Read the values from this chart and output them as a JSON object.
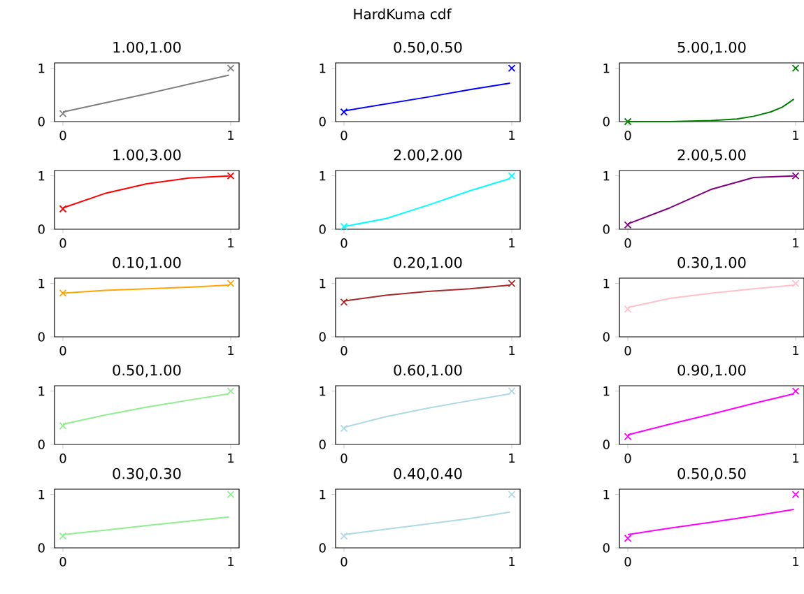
{
  "chart_data": [
    {
      "type": "line",
      "title": "1.00,1.00",
      "annotations": [
        "HardKuma cdf"
      ],
      "xlim": [
        -0.05,
        1.05
      ],
      "ylim": [
        0,
        1.1
      ],
      "xticks": [
        0,
        1
      ],
      "yticks": [
        0,
        1
      ],
      "series": [
        {
          "color": "#808080",
          "x": [
            0,
            0.25,
            0.5,
            0.75,
            0.99
          ],
          "values": [
            0.18,
            0.35,
            0.52,
            0.7,
            0.87
          ]
        },
        {
          "type": "scatter",
          "marker": "cross",
          "color": "#808080",
          "x": [
            0,
            1
          ],
          "values": [
            0.15,
            1
          ]
        }
      ]
    },
    {
      "type": "line",
      "title": "0.50,0.50",
      "xlim": [
        -0.05,
        1.05
      ],
      "ylim": [
        0,
        1.1
      ],
      "xticks": [
        0,
        1
      ],
      "yticks": [
        0,
        1
      ],
      "series": [
        {
          "color": "#0000ff",
          "x": [
            0,
            0.25,
            0.5,
            0.75,
            0.99
          ],
          "values": [
            0.2,
            0.33,
            0.46,
            0.6,
            0.72
          ]
        },
        {
          "type": "scatter",
          "marker": "cross",
          "color": "#0000ff",
          "x": [
            0,
            1
          ],
          "values": [
            0.18,
            1
          ]
        }
      ]
    },
    {
      "type": "line",
      "title": "5.00,1.00",
      "xlim": [
        -0.05,
        1.05
      ],
      "ylim": [
        0,
        1.1
      ],
      "xticks": [
        0,
        1
      ],
      "yticks": [
        0,
        1
      ],
      "series": [
        {
          "color": "#008000",
          "x": [
            0,
            0.25,
            0.5,
            0.65,
            0.75,
            0.85,
            0.92,
            0.99
          ],
          "values": [
            0,
            0,
            0.02,
            0.05,
            0.1,
            0.18,
            0.27,
            0.42
          ]
        },
        {
          "type": "scatter",
          "marker": "cross",
          "color": "#008000",
          "x": [
            0,
            1
          ],
          "values": [
            0,
            1
          ]
        }
      ]
    },
    {
      "type": "line",
      "title": "1.00,3.00",
      "xlim": [
        -0.05,
        1.05
      ],
      "ylim": [
        0,
        1.1
      ],
      "xticks": [
        0,
        1
      ],
      "yticks": [
        0,
        1
      ],
      "series": [
        {
          "color": "#ff0000",
          "x": [
            0,
            0.25,
            0.5,
            0.75,
            0.99
          ],
          "values": [
            0.4,
            0.67,
            0.85,
            0.96,
            1.0
          ]
        },
        {
          "type": "scatter",
          "marker": "cross",
          "color": "#ff0000",
          "x": [
            0,
            1
          ],
          "values": [
            0.38,
            1
          ]
        }
      ]
    },
    {
      "type": "line",
      "title": "2.00,2.00",
      "xlim": [
        -0.05,
        1.05
      ],
      "ylim": [
        0,
        1.1
      ],
      "xticks": [
        0,
        1
      ],
      "yticks": [
        0,
        1
      ],
      "series": [
        {
          "color": "#00ffff",
          "x": [
            0,
            0.25,
            0.5,
            0.75,
            0.99
          ],
          "values": [
            0.05,
            0.2,
            0.45,
            0.72,
            0.95
          ]
        },
        {
          "type": "scatter",
          "marker": "cross",
          "color": "#00ffff",
          "x": [
            0,
            1
          ],
          "values": [
            0.05,
            1
          ]
        }
      ]
    },
    {
      "type": "line",
      "title": "2.00,5.00",
      "xlim": [
        -0.05,
        1.05
      ],
      "ylim": [
        0,
        1.1
      ],
      "xticks": [
        0,
        1
      ],
      "yticks": [
        0,
        1
      ],
      "series": [
        {
          "color": "#800080",
          "x": [
            0,
            0.25,
            0.5,
            0.75,
            0.99
          ],
          "values": [
            0.1,
            0.4,
            0.75,
            0.97,
            1.0
          ]
        },
        {
          "type": "scatter",
          "marker": "cross",
          "color": "#800080",
          "x": [
            0,
            1
          ],
          "values": [
            0.08,
            1
          ]
        }
      ]
    },
    {
      "type": "line",
      "title": "0.10,1.00",
      "xlim": [
        -0.05,
        1.05
      ],
      "ylim": [
        0,
        1.1
      ],
      "xticks": [
        0,
        1
      ],
      "yticks": [
        0,
        1
      ],
      "series": [
        {
          "color": "#ffa500",
          "x": [
            0,
            0.25,
            0.5,
            0.75,
            0.99
          ],
          "values": [
            0.82,
            0.87,
            0.9,
            0.93,
            0.97
          ]
        },
        {
          "type": "scatter",
          "marker": "cross",
          "color": "#ffa500",
          "x": [
            0,
            1
          ],
          "values": [
            0.82,
            1
          ]
        }
      ]
    },
    {
      "type": "line",
      "title": "0.20,1.00",
      "xlim": [
        -0.05,
        1.05
      ],
      "ylim": [
        0,
        1.1
      ],
      "xticks": [
        0,
        1
      ],
      "yticks": [
        0,
        1
      ],
      "series": [
        {
          "color": "#a52a2a",
          "x": [
            0,
            0.25,
            0.5,
            0.75,
            0.99
          ],
          "values": [
            0.67,
            0.78,
            0.85,
            0.9,
            0.97
          ]
        },
        {
          "type": "scatter",
          "marker": "cross",
          "color": "#a52a2a",
          "x": [
            0,
            1
          ],
          "values": [
            0.65,
            1
          ]
        }
      ]
    },
    {
      "type": "line",
      "title": "0.30,1.00",
      "xlim": [
        -0.05,
        1.05
      ],
      "ylim": [
        0,
        1.1
      ],
      "xticks": [
        0,
        1
      ],
      "yticks": [
        0,
        1
      ],
      "series": [
        {
          "color": "#ffc0cb",
          "x": [
            0,
            0.25,
            0.5,
            0.75,
            0.99
          ],
          "values": [
            0.55,
            0.72,
            0.82,
            0.9,
            0.97
          ]
        },
        {
          "type": "scatter",
          "marker": "cross",
          "color": "#ffc0cb",
          "x": [
            0,
            1
          ],
          "values": [
            0.52,
            1
          ]
        }
      ]
    },
    {
      "type": "line",
      "title": "0.50,1.00",
      "xlim": [
        -0.05,
        1.05
      ],
      "ylim": [
        0,
        1.1
      ],
      "xticks": [
        0,
        1
      ],
      "yticks": [
        0,
        1
      ],
      "series": [
        {
          "color": "#90ee90",
          "x": [
            0,
            0.25,
            0.5,
            0.75,
            0.99
          ],
          "values": [
            0.38,
            0.55,
            0.7,
            0.83,
            0.95
          ]
        },
        {
          "type": "scatter",
          "marker": "cross",
          "color": "#90ee90",
          "x": [
            0,
            1
          ],
          "values": [
            0.35,
            1
          ]
        }
      ]
    },
    {
      "type": "line",
      "title": "0.60,1.00",
      "xlim": [
        -0.05,
        1.05
      ],
      "ylim": [
        0,
        1.1
      ],
      "xticks": [
        0,
        1
      ],
      "yticks": [
        0,
        1
      ],
      "series": [
        {
          "color": "#add8e6",
          "x": [
            0,
            0.25,
            0.5,
            0.75,
            0.99
          ],
          "values": [
            0.32,
            0.52,
            0.68,
            0.82,
            0.95
          ]
        },
        {
          "type": "scatter",
          "marker": "cross",
          "color": "#add8e6",
          "x": [
            0,
            1
          ],
          "values": [
            0.3,
            1
          ]
        }
      ]
    },
    {
      "type": "line",
      "title": "0.90,1.00",
      "xlim": [
        -0.05,
        1.05
      ],
      "ylim": [
        0,
        1.1
      ],
      "xticks": [
        0,
        1
      ],
      "yticks": [
        0,
        1
      ],
      "series": [
        {
          "color": "#ff00ff",
          "x": [
            0,
            0.25,
            0.5,
            0.75,
            0.99
          ],
          "values": [
            0.18,
            0.38,
            0.57,
            0.77,
            0.95
          ]
        },
        {
          "type": "scatter",
          "marker": "cross",
          "color": "#ff00ff",
          "x": [
            0,
            1
          ],
          "values": [
            0.15,
            1
          ]
        }
      ]
    },
    {
      "type": "line",
      "title": "0.30,0.30",
      "xlim": [
        -0.05,
        1.05
      ],
      "ylim": [
        0,
        1.1
      ],
      "xticks": [
        0,
        1
      ],
      "yticks": [
        0,
        1
      ],
      "series": [
        {
          "color": "#90ee90",
          "x": [
            0,
            0.25,
            0.5,
            0.75,
            0.99
          ],
          "values": [
            0.25,
            0.33,
            0.42,
            0.5,
            0.58
          ]
        },
        {
          "type": "scatter",
          "marker": "cross",
          "color": "#90ee90",
          "x": [
            0,
            1
          ],
          "values": [
            0.22,
            1
          ]
        }
      ]
    },
    {
      "type": "line",
      "title": "0.40,0.40",
      "xlim": [
        -0.05,
        1.05
      ],
      "ylim": [
        0,
        1.1
      ],
      "xticks": [
        0,
        1
      ],
      "yticks": [
        0,
        1
      ],
      "series": [
        {
          "color": "#add8e6",
          "x": [
            0,
            0.25,
            0.5,
            0.75,
            0.99
          ],
          "values": [
            0.25,
            0.35,
            0.45,
            0.55,
            0.67
          ]
        },
        {
          "type": "scatter",
          "marker": "cross",
          "color": "#add8e6",
          "x": [
            0,
            1
          ],
          "values": [
            0.22,
            1
          ]
        }
      ]
    },
    {
      "type": "line",
      "title": "0.50,0.50",
      "xlim": [
        -0.05,
        1.05
      ],
      "ylim": [
        0,
        1.1
      ],
      "xticks": [
        0,
        1
      ],
      "yticks": [
        0,
        1
      ],
      "series": [
        {
          "color": "#ff00ff",
          "x": [
            0,
            0.25,
            0.5,
            0.75,
            0.99
          ],
          "values": [
            0.25,
            0.37,
            0.48,
            0.6,
            0.72
          ]
        },
        {
          "type": "scatter",
          "marker": "cross",
          "color": "#ff00ff",
          "x": [
            0,
            1
          ],
          "values": [
            0.18,
            1
          ]
        }
      ]
    }
  ]
}
